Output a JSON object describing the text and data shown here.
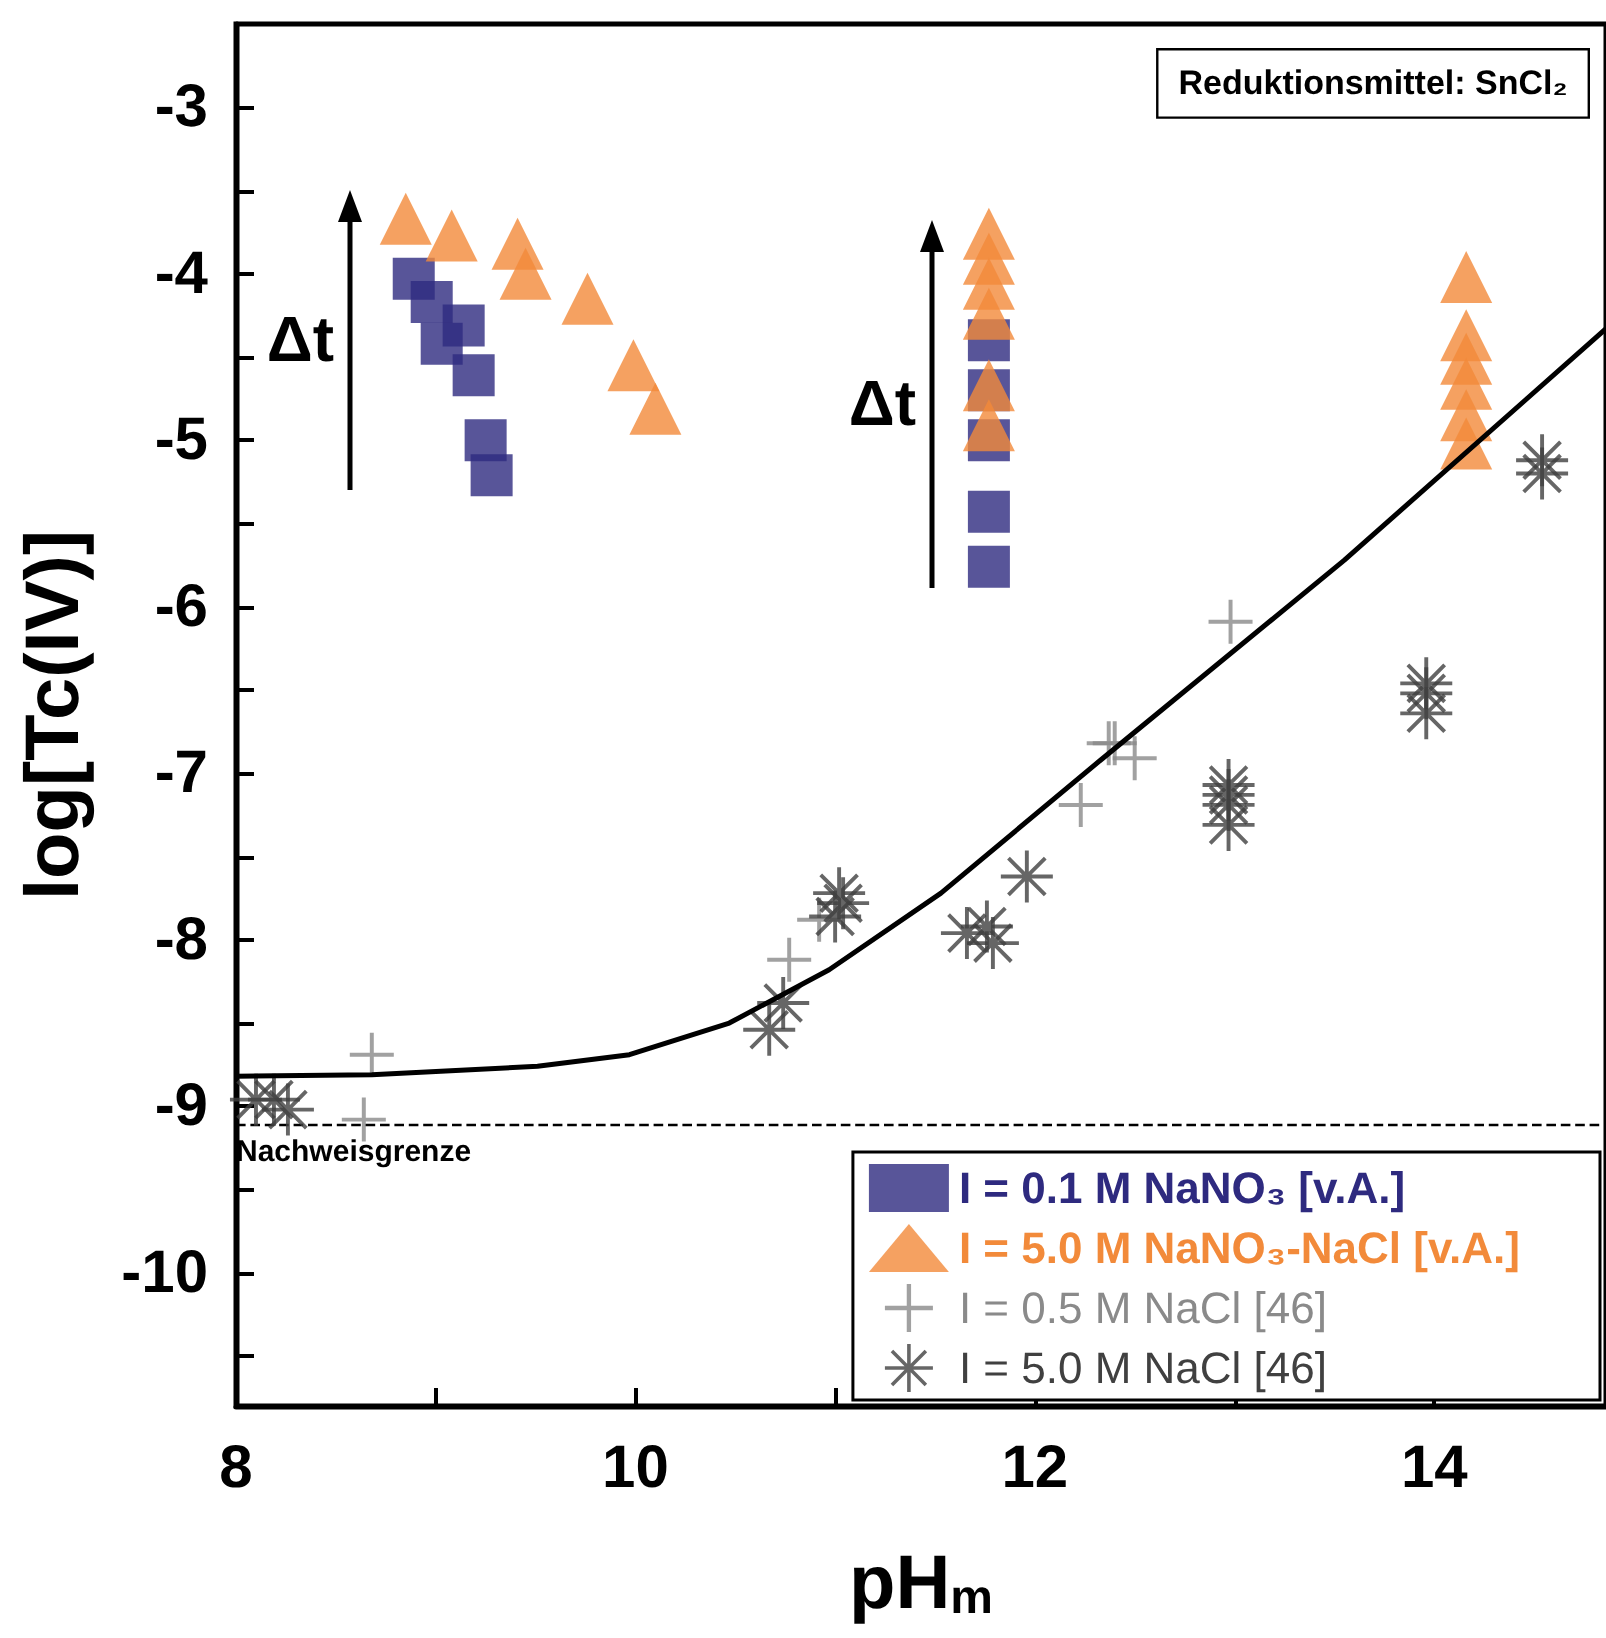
{
  "chart_data": {
    "type": "scatter",
    "xlabel": "pH$_{m}$",
    "ylabel": "log[Tc(IV)]",
    "xlim": [
      8,
      14.86
    ],
    "ylim": [
      -10.8,
      -2.5
    ],
    "xticks": [
      8,
      {
        "value": 9,
        "label": null
      },
      10,
      {
        "value": 11,
        "label": null
      },
      12,
      {
        "value": 13,
        "label": null
      },
      14
    ],
    "yticks": [
      {
        "value": -10.5,
        "label": null
      },
      -10,
      {
        "value": -9.5,
        "label": null
      },
      -9,
      {
        "value": -8.5,
        "label": null
      },
      -8,
      {
        "value": -7.5,
        "label": null
      },
      -7,
      {
        "value": -6.5,
        "label": null
      },
      -6,
      {
        "value": -5.5,
        "label": null
      },
      -5,
      {
        "value": -4.5,
        "label": null
      },
      -4,
      {
        "value": -3.5,
        "label": null
      },
      -3
    ],
    "grid": false,
    "legend": "bottom right",
    "series": [
      {
        "name": "I = 0.1 M NaNO₃ [v.A.]",
        "color": "#2e2a7f",
        "marker": "square",
        "x": [
          8.89,
          8.98,
          9.03,
          9.14,
          9.19,
          9.25,
          9.28,
          11.77,
          11.77,
          11.77,
          11.77,
          11.77
        ],
        "values": [
          -4.03,
          -4.17,
          -4.42,
          -4.31,
          -4.61,
          -5.0,
          -5.21,
          -4.4,
          -4.7,
          -5.0,
          -5.43,
          -5.76
        ]
      },
      {
        "name": "I = 5.0 M NaNO₃-NaCl [v.A.]",
        "color": "#f28a3a",
        "marker": "triangle",
        "x": [
          8.85,
          9.08,
          9.41,
          9.45,
          9.76,
          9.99,
          10.1,
          11.77,
          11.77,
          11.77,
          11.77,
          11.77,
          11.77,
          14.16,
          14.16,
          14.16,
          14.16,
          14.16,
          14.16
        ],
        "values": [
          -3.67,
          -3.77,
          -3.82,
          -4.0,
          -4.15,
          -4.55,
          -4.81,
          -3.76,
          -3.91,
          -4.06,
          -4.24,
          -4.67,
          -4.91,
          -4.02,
          -4.37,
          -4.51,
          -4.66,
          -4.85,
          -5.02
        ]
      },
      {
        "name": "I = 0.5 M NaCl [46]",
        "color": "#8a8a8a",
        "marker": "cross",
        "x": [
          8.68,
          8.64,
          10.77,
          10.92,
          12.23,
          12.98,
          12.4,
          12.5,
          12.37
        ],
        "values": [
          -8.69,
          -9.08,
          -8.12,
          -7.88,
          -7.19,
          -6.09,
          -6.82,
          -6.91,
          -6.82
        ]
      },
      {
        "name": "I = 5.0 M NaCl [46]",
        "color": "#404040",
        "marker": "star",
        "x": [
          8.1,
          8.19,
          8.26,
          10.67,
          10.74,
          11.02,
          11.04,
          11.0,
          11.66,
          11.76,
          11.79,
          11.96,
          12.97,
          12.97,
          12.97,
          12.97,
          13.96,
          13.96,
          13.96,
          14.54,
          14.54
        ],
        "values": [
          -8.96,
          -8.96,
          -9.02,
          -8.54,
          -8.38,
          -7.72,
          -7.78,
          -7.86,
          -7.96,
          -7.92,
          -8.02,
          -7.62,
          -7.07,
          -7.13,
          -7.19,
          -7.31,
          -6.46,
          -6.52,
          -6.64,
          -5.12,
          -5.2
        ]
      },
      {
        "type": "line",
        "color": "#000000",
        "marker": "none",
        "line_style": "solid",
        "x": [
          8.0,
          8.68,
          9.51,
          9.97,
          10.47,
          10.97,
          11.53,
          12.33,
          13.55,
          14.86
        ],
        "values": [
          -8.82,
          -8.81,
          -8.76,
          -8.69,
          -8.5,
          -8.18,
          -7.72,
          -6.92,
          -5.72,
          -4.33
        ]
      }
    ],
    "ref_lines": [
      {
        "axis": "y",
        "value": -9.11,
        "label": "Nachweisgrenze",
        "color": "#000000",
        "line_style": "dashed"
      }
    ],
    "annotations": [
      "Reduktionsmittel: SnCl₂",
      "Δt",
      "Δt"
    ]
  }
}
